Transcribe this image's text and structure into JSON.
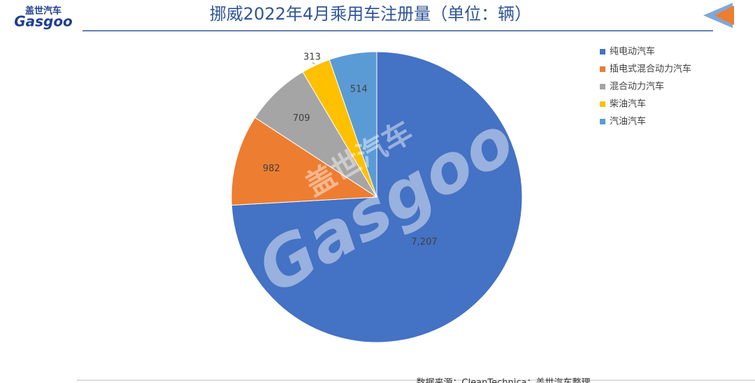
{
  "logo": {
    "brand_cn": "盖世汽车",
    "brand_en": "Gasgoo"
  },
  "chart_data": {
    "type": "pie",
    "title": "挪威2022年4月乘用车注册量（单位：辆）",
    "categories": [
      "纯电动汽车",
      "插电式混合动力汽车",
      "混合动力汽车",
      "柴油汽车",
      "汽油汽车"
    ],
    "values": [
      7207,
      982,
      709,
      313,
      514
    ],
    "value_labels": [
      "7,207",
      "982",
      "709",
      "313",
      "514"
    ],
    "colors": [
      "#4472c4",
      "#ed7d31",
      "#a5a5a5",
      "#ffc000",
      "#5b9bd5"
    ],
    "legend": "right",
    "source": "数据来源：CleanTechnica；盖世汽车整理"
  },
  "watermark": {
    "cn": "盖世汽车",
    "en": "Gasgoo"
  }
}
